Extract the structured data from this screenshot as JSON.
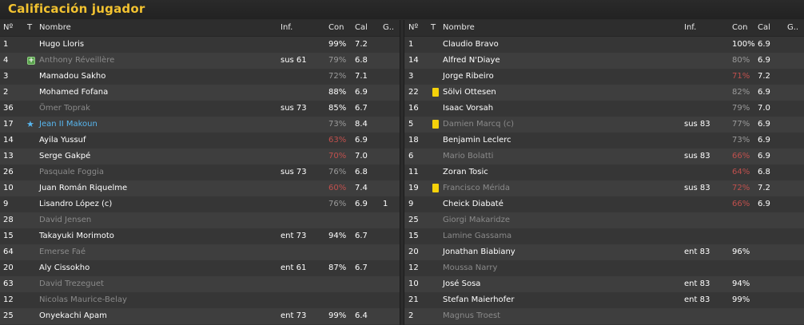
{
  "title": "Calificación jugador",
  "columns": {
    "num": "Nº",
    "t": "T",
    "name": "Nombre",
    "inf": "Inf.",
    "con": "Con",
    "cal": "Cal",
    "g": "G.."
  },
  "colors": {
    "title": "#f2c230",
    "highlight": "#58b7f0",
    "low": "#c0504d",
    "card": "#f5d20a",
    "sub_icon": "#5aa04e"
  },
  "left_team": [
    {
      "num": "1",
      "name": "Hugo Lloris",
      "inf": "",
      "con": "99%",
      "cal": "7.2",
      "g": "",
      "style": "good",
      "con_style": "good",
      "icon": ""
    },
    {
      "num": "4",
      "name": "Anthony Réveillère",
      "inf": "sus 61",
      "con": "79%",
      "cal": "6.8",
      "g": "",
      "style": "muted",
      "con_style": "mid",
      "icon": "substitution-icon"
    },
    {
      "num": "3",
      "name": "Mamadou Sakho",
      "inf": "",
      "con": "72%",
      "cal": "7.1",
      "g": "",
      "style": "good",
      "con_style": "mid",
      "icon": ""
    },
    {
      "num": "2",
      "name": "Mohamed Fofana",
      "inf": "",
      "con": "88%",
      "cal": "6.9",
      "g": "",
      "style": "good",
      "con_style": "good",
      "icon": ""
    },
    {
      "num": "36",
      "name": "Ömer Toprak",
      "inf": "sus 73",
      "con": "85%",
      "cal": "6.7",
      "g": "",
      "style": "muted",
      "con_style": "good",
      "icon": ""
    },
    {
      "num": "17",
      "name": "Jean II Makoun",
      "inf": "",
      "con": "73%",
      "cal": "8.4",
      "g": "",
      "style": "highlight",
      "con_style": "mid",
      "icon": "star-icon"
    },
    {
      "num": "14",
      "name": "Ayila Yussuf",
      "inf": "",
      "con": "63%",
      "cal": "6.9",
      "g": "",
      "style": "good",
      "con_style": "low",
      "icon": ""
    },
    {
      "num": "13",
      "name": "Serge Gakpé",
      "inf": "",
      "con": "70%",
      "cal": "7.0",
      "g": "",
      "style": "good",
      "con_style": "low",
      "icon": ""
    },
    {
      "num": "26",
      "name": "Pasquale Foggia",
      "inf": "sus 73",
      "con": "76%",
      "cal": "6.8",
      "g": "",
      "style": "muted",
      "con_style": "mid",
      "icon": ""
    },
    {
      "num": "10",
      "name": "Juan Román Riquelme",
      "inf": "",
      "con": "60%",
      "cal": "7.4",
      "g": "",
      "style": "good",
      "con_style": "low",
      "icon": ""
    },
    {
      "num": "9",
      "name": "Lisandro López (c)",
      "inf": "",
      "con": "76%",
      "cal": "6.9",
      "g": "1",
      "style": "good",
      "con_style": "mid",
      "icon": ""
    },
    {
      "num": "28",
      "name": "David Jensen",
      "inf": "",
      "con": "",
      "cal": "",
      "g": "",
      "style": "muted",
      "con_style": "mid",
      "icon": ""
    },
    {
      "num": "15",
      "name": "Takayuki Morimoto",
      "inf": "ent 73",
      "con": "94%",
      "cal": "6.7",
      "g": "",
      "style": "good",
      "con_style": "good",
      "icon": ""
    },
    {
      "num": "64",
      "name": "Emerse Faé",
      "inf": "",
      "con": "",
      "cal": "",
      "g": "",
      "style": "muted",
      "con_style": "mid",
      "icon": ""
    },
    {
      "num": "20",
      "name": "Aly Cissokho",
      "inf": "ent 61",
      "con": "87%",
      "cal": "6.7",
      "g": "",
      "style": "good",
      "con_style": "good",
      "icon": ""
    },
    {
      "num": "63",
      "name": "David Trezeguet",
      "inf": "",
      "con": "",
      "cal": "",
      "g": "",
      "style": "muted",
      "con_style": "mid",
      "icon": ""
    },
    {
      "num": "12",
      "name": "Nicolas Maurice-Belay",
      "inf": "",
      "con": "",
      "cal": "",
      "g": "",
      "style": "muted",
      "con_style": "mid",
      "icon": ""
    },
    {
      "num": "25",
      "name": "Onyekachi Apam",
      "inf": "ent 73",
      "con": "99%",
      "cal": "6.4",
      "g": "",
      "style": "good",
      "con_style": "good",
      "icon": ""
    }
  ],
  "right_team": [
    {
      "num": "1",
      "name": "Claudio Bravo",
      "inf": "",
      "con": "100%",
      "cal": "6.9",
      "g": "",
      "style": "good",
      "con_style": "good",
      "icon": ""
    },
    {
      "num": "14",
      "name": "Alfred N'Diaye",
      "inf": "",
      "con": "80%",
      "cal": "6.9",
      "g": "",
      "style": "good",
      "con_style": "mid",
      "icon": ""
    },
    {
      "num": "3",
      "name": "Jorge Ribeiro",
      "inf": "",
      "con": "71%",
      "cal": "7.2",
      "g": "",
      "style": "good",
      "con_style": "low",
      "icon": ""
    },
    {
      "num": "22",
      "name": "Sölvi Ottesen",
      "inf": "",
      "con": "82%",
      "cal": "6.9",
      "g": "",
      "style": "good",
      "con_style": "mid",
      "icon": "yellow-card-icon"
    },
    {
      "num": "16",
      "name": "Isaac Vorsah",
      "inf": "",
      "con": "79%",
      "cal": "7.0",
      "g": "",
      "style": "good",
      "con_style": "mid",
      "icon": ""
    },
    {
      "num": "5",
      "name": "Damien Marcq (c)",
      "inf": "sus 83",
      "con": "77%",
      "cal": "6.9",
      "g": "",
      "style": "muted",
      "con_style": "mid",
      "icon": "yellow-card-icon"
    },
    {
      "num": "18",
      "name": "Benjamin Leclerc",
      "inf": "",
      "con": "73%",
      "cal": "6.9",
      "g": "",
      "style": "good",
      "con_style": "mid",
      "icon": ""
    },
    {
      "num": "6",
      "name": "Mario Bolatti",
      "inf": "sus 83",
      "con": "66%",
      "cal": "6.9",
      "g": "",
      "style": "muted",
      "con_style": "low",
      "icon": ""
    },
    {
      "num": "11",
      "name": "Zoran Tosic",
      "inf": "",
      "con": "64%",
      "cal": "6.8",
      "g": "",
      "style": "good",
      "con_style": "low",
      "icon": ""
    },
    {
      "num": "19",
      "name": "Francisco Mérida",
      "inf": "sus 83",
      "con": "72%",
      "cal": "7.2",
      "g": "",
      "style": "muted",
      "con_style": "low",
      "icon": "yellow-card-icon"
    },
    {
      "num": "9",
      "name": "Cheick Diabaté",
      "inf": "",
      "con": "66%",
      "cal": "6.9",
      "g": "",
      "style": "good",
      "con_style": "low",
      "icon": ""
    },
    {
      "num": "25",
      "name": "Giorgi Makaridze",
      "inf": "",
      "con": "",
      "cal": "",
      "g": "",
      "style": "muted",
      "con_style": "mid",
      "icon": ""
    },
    {
      "num": "15",
      "name": "Lamine Gassama",
      "inf": "",
      "con": "",
      "cal": "",
      "g": "",
      "style": "muted",
      "con_style": "mid",
      "icon": ""
    },
    {
      "num": "20",
      "name": "Jonathan Biabiany",
      "inf": "ent 83",
      "con": "96%",
      "cal": "",
      "g": "",
      "style": "good",
      "con_style": "good",
      "icon": ""
    },
    {
      "num": "12",
      "name": "Moussa Narry",
      "inf": "",
      "con": "",
      "cal": "",
      "g": "",
      "style": "muted",
      "con_style": "mid",
      "icon": ""
    },
    {
      "num": "10",
      "name": "José Sosa",
      "inf": "ent 83",
      "con": "94%",
      "cal": "",
      "g": "",
      "style": "good",
      "con_style": "good",
      "icon": ""
    },
    {
      "num": "21",
      "name": "Stefan Maierhofer",
      "inf": "ent 83",
      "con": "99%",
      "cal": "",
      "g": "",
      "style": "good",
      "con_style": "good",
      "icon": ""
    },
    {
      "num": "2",
      "name": "Magnus Troest",
      "inf": "",
      "con": "",
      "cal": "",
      "g": "",
      "style": "muted",
      "con_style": "mid",
      "icon": ""
    }
  ]
}
